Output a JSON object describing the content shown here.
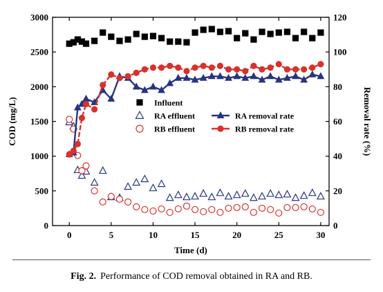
{
  "chart_data": {
    "type": "scatter",
    "xlabel": "Time (d)",
    "ylabel": "COD (mg/L)",
    "y2label": "Removal rate (%)",
    "xlim": [
      -2,
      31
    ],
    "ylim": [
      0,
      3000
    ],
    "y2lim": [
      0,
      120
    ],
    "xticks": [
      0,
      5,
      10,
      15,
      20,
      25,
      30
    ],
    "yticks": [
      0,
      500,
      1000,
      1500,
      2000,
      2500,
      3000
    ],
    "y2ticks": [
      0,
      20,
      40,
      60,
      80,
      100,
      120
    ],
    "legend_position": "center-right",
    "series": [
      {
        "name": "Influent",
        "axis": "left",
        "marker": "square",
        "filled": true,
        "line": false,
        "color": "#000000",
        "points": [
          [
            0,
            2620
          ],
          [
            0.5,
            2640
          ],
          [
            1,
            2680
          ],
          [
            1.5,
            2650
          ],
          [
            2,
            2620
          ],
          [
            3,
            2660
          ],
          [
            4,
            2780
          ],
          [
            5,
            2720
          ],
          [
            6,
            2660
          ],
          [
            7,
            2680
          ],
          [
            8,
            2760
          ],
          [
            9,
            2720
          ],
          [
            10,
            2730
          ],
          [
            11,
            2700
          ],
          [
            12,
            2650
          ],
          [
            13,
            2650
          ],
          [
            14,
            2640
          ],
          [
            15,
            2780
          ],
          [
            16,
            2820
          ],
          [
            17,
            2830
          ],
          [
            18,
            2790
          ],
          [
            19,
            2800
          ],
          [
            20,
            2700
          ],
          [
            21,
            2770
          ],
          [
            22,
            2680
          ],
          [
            23,
            2790
          ],
          [
            24,
            2760
          ],
          [
            25,
            2780
          ],
          [
            26,
            2790
          ],
          [
            27,
            2700
          ],
          [
            28,
            2790
          ],
          [
            29,
            2700
          ],
          [
            30,
            2780
          ]
        ]
      },
      {
        "name": "RA effluent",
        "axis": "left",
        "marker": "triangle",
        "filled": false,
        "line": false,
        "color": "#27357f",
        "points": [
          [
            0,
            1490
          ],
          [
            0.5,
            1430
          ],
          [
            1,
            800
          ],
          [
            1.5,
            720
          ],
          [
            2,
            780
          ],
          [
            3,
            620
          ],
          [
            4,
            790
          ],
          [
            5,
            410
          ],
          [
            6,
            400
          ],
          [
            7,
            560
          ],
          [
            8,
            620
          ],
          [
            9,
            670
          ],
          [
            10,
            540
          ],
          [
            11,
            600
          ],
          [
            12,
            400
          ],
          [
            13,
            440
          ],
          [
            14,
            410
          ],
          [
            15,
            420
          ],
          [
            16,
            460
          ],
          [
            17,
            410
          ],
          [
            18,
            470
          ],
          [
            19,
            420
          ],
          [
            20,
            440
          ],
          [
            21,
            460
          ],
          [
            22,
            400
          ],
          [
            23,
            420
          ],
          [
            24,
            460
          ],
          [
            25,
            440
          ],
          [
            26,
            450
          ],
          [
            27,
            400
          ],
          [
            28,
            430
          ],
          [
            29,
            470
          ],
          [
            30,
            420
          ]
        ]
      },
      {
        "name": "RB effluent",
        "axis": "left",
        "marker": "circle",
        "filled": false,
        "line": false,
        "color": "#d9312c",
        "points": [
          [
            0,
            1530
          ],
          [
            0.5,
            1390
          ],
          [
            1,
            1010
          ],
          [
            1.5,
            790
          ],
          [
            2,
            860
          ],
          [
            3,
            500
          ],
          [
            4,
            340
          ],
          [
            5,
            420
          ],
          [
            6,
            380
          ],
          [
            7,
            340
          ],
          [
            8,
            270
          ],
          [
            9,
            230
          ],
          [
            10,
            210
          ],
          [
            11,
            240
          ],
          [
            12,
            190
          ],
          [
            13,
            240
          ],
          [
            14,
            280
          ],
          [
            15,
            230
          ],
          [
            16,
            200
          ],
          [
            17,
            230
          ],
          [
            18,
            190
          ],
          [
            19,
            250
          ],
          [
            20,
            260
          ],
          [
            21,
            270
          ],
          [
            22,
            190
          ],
          [
            23,
            250
          ],
          [
            24,
            230
          ],
          [
            25,
            180
          ],
          [
            26,
            260
          ],
          [
            27,
            260
          ],
          [
            28,
            270
          ],
          [
            29,
            240
          ],
          [
            30,
            190
          ]
        ]
      },
      {
        "name": "RA removal rate",
        "axis": "right",
        "marker": "triangle",
        "filled": true,
        "line": true,
        "color": "#27357f",
        "points": [
          [
            0,
            41
          ],
          [
            0.5,
            42
          ],
          [
            1,
            68
          ],
          [
            1.5,
            70
          ],
          [
            2,
            73
          ],
          [
            3,
            71
          ],
          [
            4,
            78
          ],
          [
            5,
            73
          ],
          [
            6,
            86
          ],
          [
            7,
            85
          ],
          [
            8,
            80
          ],
          [
            9,
            78
          ],
          [
            10,
            80
          ],
          [
            11,
            78
          ],
          [
            12,
            82
          ],
          [
            13,
            85
          ],
          [
            14,
            85
          ],
          [
            15,
            84
          ],
          [
            16,
            85
          ],
          [
            17,
            86
          ],
          [
            18,
            86
          ],
          [
            19,
            85
          ],
          [
            20,
            86
          ],
          [
            21,
            85
          ],
          [
            22,
            86
          ],
          [
            23,
            84
          ],
          [
            24,
            86
          ],
          [
            25,
            84
          ],
          [
            26,
            85
          ],
          [
            27,
            86
          ],
          [
            28,
            84
          ],
          [
            29,
            87
          ],
          [
            30,
            86
          ]
        ]
      },
      {
        "name": "RB removal rate",
        "axis": "right",
        "marker": "circle",
        "filled": true,
        "line": true,
        "color": "#d9312c",
        "points": [
          [
            0,
            41
          ],
          [
            0.5,
            43
          ],
          [
            1,
            47
          ],
          [
            1.5,
            62
          ],
          [
            2,
            70
          ],
          [
            3,
            67
          ],
          [
            4,
            81
          ],
          [
            5,
            87
          ],
          [
            6,
            85
          ],
          [
            7,
            86
          ],
          [
            8,
            88
          ],
          [
            9,
            90
          ],
          [
            10,
            91
          ],
          [
            11,
            91
          ],
          [
            12,
            92
          ],
          [
            13,
            91
          ],
          [
            14,
            89
          ],
          [
            15,
            91
          ],
          [
            16,
            92
          ],
          [
            17,
            91
          ],
          [
            18,
            92
          ],
          [
            19,
            90
          ],
          [
            20,
            90
          ],
          [
            21,
            89
          ],
          [
            22,
            92
          ],
          [
            23,
            90
          ],
          [
            24,
            91
          ],
          [
            25,
            93
          ],
          [
            26,
            90
          ],
          [
            27,
            90
          ],
          [
            28,
            90
          ],
          [
            29,
            91
          ],
          [
            30,
            93
          ]
        ]
      }
    ]
  },
  "caption": {
    "label": "Fig. 2.",
    "text": "Performance of COD removal obtained in RA and RB."
  }
}
